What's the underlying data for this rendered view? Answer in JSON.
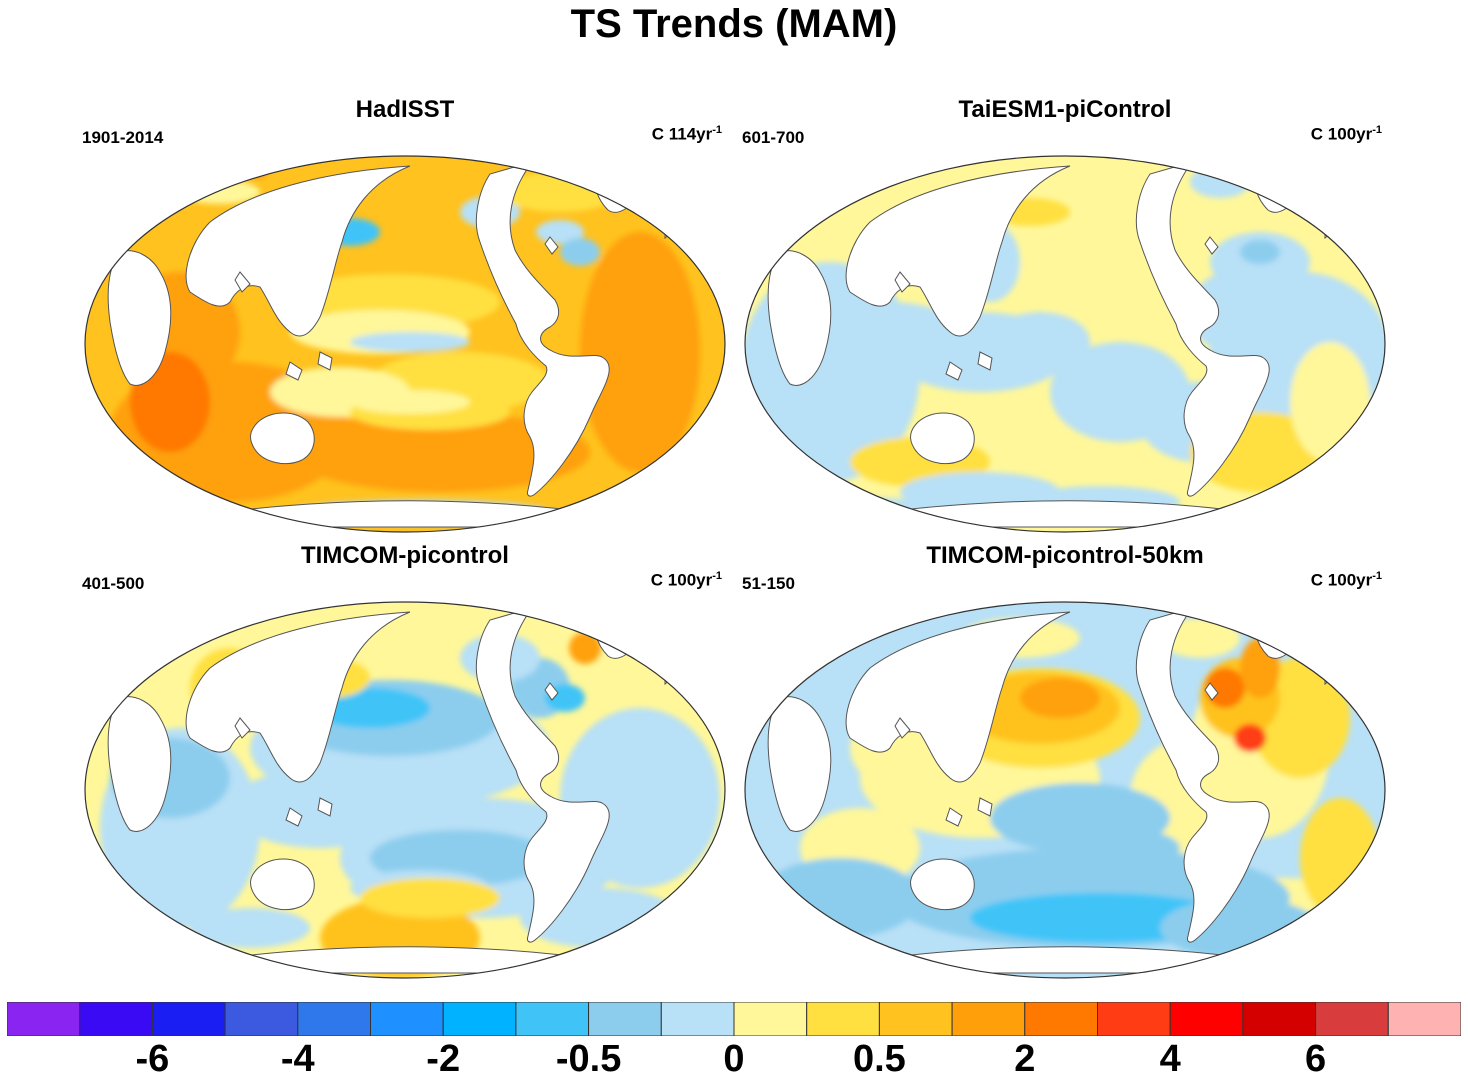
{
  "title": "TS Trends (MAM)",
  "panels": [
    {
      "title": "HadISST",
      "period": "1901-2014",
      "units_base": "C 114yr",
      "units_exp": "-1",
      "style": "warm"
    },
    {
      "title": "TaiESM1-piControl",
      "period": "601-700",
      "units_base": "C 100yr",
      "units_exp": "-1",
      "style": "mixed"
    },
    {
      "title": "TIMCOM-picontrol",
      "period": "401-500",
      "units_base": "C 100yr",
      "units_exp": "-1",
      "style": "mixed-cool"
    },
    {
      "title": "TIMCOM-picontrol-50km",
      "period": "51-150",
      "units_base": "C 100yr",
      "units_exp": "-1",
      "style": "dipole"
    }
  ],
  "colorbar": {
    "colors": [
      "#8a24f0",
      "#3b0af5",
      "#1a1ef2",
      "#3b5ae0",
      "#2e78ec",
      "#1e90ff",
      "#00b2ff",
      "#40c4f8",
      "#8ccdee",
      "#b8e0f6",
      "#fff79a",
      "#ffe040",
      "#ffc21e",
      "#ffa00a",
      "#ff7800",
      "#ff3c14",
      "#ff0000",
      "#d40000",
      "#d83c3c",
      "#ffb2b2"
    ],
    "labels": [
      {
        "text": "-6",
        "index": 2
      },
      {
        "text": "-4",
        "index": 4
      },
      {
        "text": "-2",
        "index": 6
      },
      {
        "text": "-0.5",
        "index": 8
      },
      {
        "text": "0",
        "index": 10
      },
      {
        "text": "0.5",
        "index": 12
      },
      {
        "text": "2",
        "index": 14
      },
      {
        "text": "4",
        "index": 16
      },
      {
        "text": "6",
        "index": 18
      }
    ]
  }
}
